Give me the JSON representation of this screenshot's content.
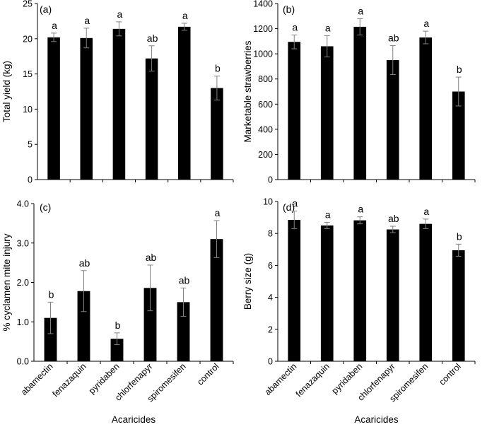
{
  "figure": {
    "shared_categories": [
      "abamectin",
      "fenazaquin",
      "pyridaben",
      "chlorfenapyr",
      "spiromesifen",
      "control"
    ],
    "shared_xlabel": "Acaricides",
    "bar_color": "#000000",
    "error_color": "#808080"
  },
  "chart_data": [
    {
      "panel": "(a)",
      "type": "bar",
      "title": "",
      "categories": [
        "abamectin",
        "fenazaquin",
        "pyridaben",
        "chlorfenapyr",
        "spiromesifen",
        "control"
      ],
      "values": [
        20.2,
        20.1,
        21.4,
        17.2,
        21.7,
        13.0
      ],
      "errors": [
        0.6,
        1.4,
        1.0,
        1.8,
        0.5,
        1.7
      ],
      "significance": [
        "a",
        "a",
        "a",
        "ab",
        "a",
        "b"
      ],
      "xlabel": "",
      "ylabel": "Total yield (kg)",
      "ylim": [
        0,
        25
      ],
      "yticks": [
        0,
        5,
        10,
        15,
        20,
        25
      ],
      "ytick_labels": [
        "0",
        "5",
        "10",
        "15",
        "20",
        "25"
      ],
      "show_category_labels": false
    },
    {
      "panel": "(b)",
      "type": "bar",
      "title": "",
      "categories": [
        "abamectin",
        "fenazaquin",
        "pyridaben",
        "chlorfenapyr",
        "spiromesifen",
        "control"
      ],
      "values": [
        1095,
        1060,
        1215,
        950,
        1130,
        700
      ],
      "errors": [
        55,
        85,
        65,
        115,
        50,
        115
      ],
      "significance": [
        "a",
        "a",
        "a",
        "ab",
        "a",
        "b"
      ],
      "xlabel": "",
      "ylabel": "Marketable strawberries",
      "ylim": [
        0,
        1400
      ],
      "yticks": [
        0,
        200,
        400,
        600,
        800,
        1000,
        1200,
        1400
      ],
      "ytick_labels": [
        "0",
        "200",
        "400",
        "600",
        "800",
        "1000",
        "1200",
        "1400"
      ],
      "show_category_labels": false
    },
    {
      "panel": "(c)",
      "type": "bar",
      "title": "",
      "categories": [
        "abamectin",
        "fenazaquin",
        "pyridaben",
        "chlorfenapyr",
        "spiromesifen",
        "control"
      ],
      "values": [
        1.1,
        1.78,
        0.57,
        1.86,
        1.5,
        3.1
      ],
      "errors": [
        0.4,
        0.52,
        0.15,
        0.58,
        0.36,
        0.47
      ],
      "significance": [
        "b",
        "ab",
        "b",
        "ab",
        "ab",
        "a"
      ],
      "xlabel": "Acaricides",
      "ylabel": "% cyclamen mite injury",
      "ylim": [
        0,
        4
      ],
      "yticks": [
        0,
        1,
        2,
        3,
        4
      ],
      "ytick_labels": [
        "0.0",
        "1.0",
        "2.0",
        "3.0",
        "4.0"
      ],
      "show_category_labels": true
    },
    {
      "panel": "(d)",
      "type": "bar",
      "title": "",
      "categories": [
        "abamectin",
        "fenazaquin",
        "pyridaben",
        "chlorfenapyr",
        "spiromesifen",
        "control"
      ],
      "values": [
        8.85,
        8.5,
        8.82,
        8.25,
        8.6,
        6.95
      ],
      "errors": [
        0.55,
        0.2,
        0.22,
        0.2,
        0.3,
        0.38
      ],
      "significance": [
        "a",
        "a",
        "a",
        "ab",
        "a",
        "b"
      ],
      "xlabel": "Acaricides",
      "ylabel": "Berry size (g)",
      "ylim": [
        0,
        10
      ],
      "yticks": [
        0,
        2,
        4,
        6,
        8,
        10
      ],
      "ytick_labels": [
        "0",
        "2",
        "4",
        "6",
        "8",
        "10"
      ],
      "show_category_labels": true
    }
  ]
}
